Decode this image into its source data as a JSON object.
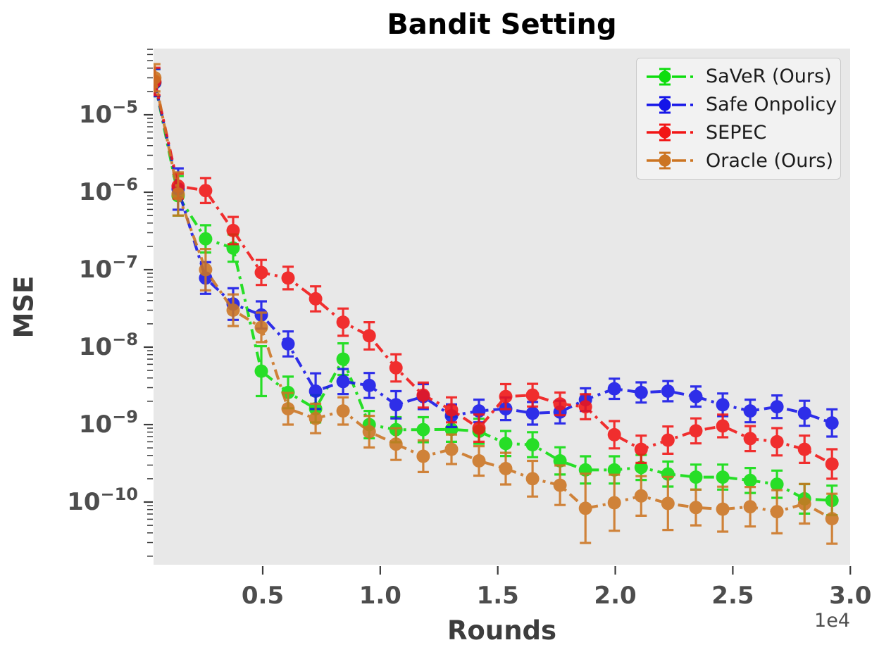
{
  "title": "Bandit Setting",
  "axes": {
    "xlabel": "Rounds",
    "ylabel": "MSE",
    "x_offset_label": "1e4",
    "x_ticks": [
      {
        "value": 5000,
        "label": "0.5"
      },
      {
        "value": 10000,
        "label": "1.0"
      },
      {
        "value": 15000,
        "label": "1.5"
      },
      {
        "value": 20000,
        "label": "2.0"
      },
      {
        "value": 25000,
        "label": "2.5"
      },
      {
        "value": 30000,
        "label": "3.0"
      }
    ],
    "y_ticks": [
      {
        "value": 1e-05,
        "base": "10",
        "exp": "−5"
      },
      {
        "value": 1e-06,
        "base": "10",
        "exp": "−6"
      },
      {
        "value": 1e-07,
        "base": "10",
        "exp": "−7"
      },
      {
        "value": 1e-08,
        "base": "10",
        "exp": "−8"
      },
      {
        "value": 1e-09,
        "base": "10",
        "exp": "−9"
      },
      {
        "value": 1e-10,
        "base": "10",
        "exp": "−10"
      }
    ],
    "xlim": [
      400,
      30000
    ],
    "ylim": [
      1.5e-11,
      7.2e-05
    ],
    "y_scale": "log",
    "grid": false,
    "plot_background": "#e8e8e8"
  },
  "legend": {
    "position": "upper right",
    "items": [
      {
        "label": "SaVeR (Ours)",
        "color": "#0ddd0d"
      },
      {
        "label": "Safe Onpolicy",
        "color": "#1515e8"
      },
      {
        "label": "SEPEC",
        "color": "#f21515"
      },
      {
        "label": "Oracle (Ours)",
        "color": "#cc7522"
      }
    ]
  },
  "chart_data": {
    "type": "line",
    "title": "Bandit Setting",
    "xlabel": "Rounds",
    "ylabel": "MSE",
    "line_style": "dashdot",
    "marker": "circle",
    "error_bars": true,
    "x": [
      410,
      1400,
      2570,
      3740,
      4940,
      6080,
      7250,
      8420,
      9530,
      10670,
      11830,
      13030,
      14200,
      15340,
      16480,
      17650,
      18730,
      19960,
      21100,
      22240,
      23430,
      24570,
      25740,
      26880,
      28050,
      29220
    ],
    "series": [
      {
        "name": "SaVeR (Ours)",
        "color": "#0ddd0d",
        "values": [
          2.6e-05,
          9e-07,
          2.5e-07,
          1.9e-07,
          4.9e-09,
          2.6e-09,
          1.6e-09,
          7e-09,
          1e-09,
          8.6e-10,
          8.6e-10,
          8.7e-10,
          8.2e-10,
          5.7e-10,
          5.5e-10,
          3.4e-10,
          2.6e-10,
          2.6e-10,
          2.8e-10,
          2.3e-10,
          2.1e-10,
          2.1e-10,
          1.9e-10,
          1.7e-10,
          1.1e-10,
          1.05e-10
        ],
        "err_factors": [
          1.5,
          1.8,
          1.5,
          1.5,
          2.1,
          1.6,
          1.5,
          1.6,
          1.5,
          1.45,
          1.45,
          1.45,
          1.45,
          1.45,
          1.45,
          1.5,
          1.5,
          1.5,
          1.45,
          1.45,
          1.45,
          1.45,
          1.45,
          1.5,
          1.55,
          1.55
        ]
      },
      {
        "name": "Safe Onpolicy",
        "color": "#1515e8",
        "values": [
          2.6e-05,
          1.1e-06,
          7.8e-08,
          3.6e-08,
          2.6e-08,
          1.1e-08,
          2.7e-09,
          3.6e-09,
          3.2e-09,
          1.8e-09,
          2.3e-09,
          1.3e-09,
          1.5e-09,
          1.6e-09,
          1.4e-09,
          1.45e-09,
          2.1e-09,
          2.9e-09,
          2.6e-09,
          2.7e-09,
          2.3e-09,
          1.8e-09,
          1.5e-09,
          1.7e-09,
          1.4e-09,
          1.05e-09
        ],
        "err_factors": [
          1.5,
          1.85,
          1.6,
          1.6,
          1.5,
          1.45,
          1.7,
          1.45,
          1.45,
          1.5,
          1.45,
          1.4,
          1.4,
          1.4,
          1.4,
          1.4,
          1.4,
          1.35,
          1.35,
          1.35,
          1.35,
          1.4,
          1.4,
          1.4,
          1.45,
          1.5
        ]
      },
      {
        "name": "SEPEC",
        "color": "#f21515",
        "values": [
          2.7e-05,
          1.2e-06,
          1.05e-06,
          3.2e-07,
          9.2e-08,
          7.8e-08,
          4.2e-08,
          2.1e-08,
          1.4e-08,
          5.4e-09,
          2.4e-09,
          1.55e-09,
          9e-10,
          2.3e-09,
          2.4e-09,
          1.85e-09,
          1.7e-09,
          7.4e-10,
          4.8e-10,
          6.3e-10,
          8.3e-10,
          9.6e-10,
          6.6e-10,
          6e-10,
          4.8e-10,
          3.1e-10
        ],
        "err_factors": [
          1.5,
          1.45,
          1.45,
          1.5,
          1.45,
          1.4,
          1.45,
          1.5,
          1.5,
          1.5,
          1.45,
          1.45,
          1.5,
          1.45,
          1.4,
          1.4,
          1.45,
          1.5,
          1.5,
          1.5,
          1.45,
          1.4,
          1.45,
          1.5,
          1.5,
          1.55
        ]
      },
      {
        "name": "Oracle (Ours)",
        "color": "#cc7522",
        "values": [
          3e-05,
          9.5e-07,
          1e-07,
          3e-08,
          1.8e-08,
          1.6e-09,
          1.2e-09,
          1.5e-09,
          8.1e-10,
          5.6e-10,
          3.9e-10,
          4.8e-10,
          3.4e-10,
          2.7e-10,
          2e-10,
          1.65e-10,
          8.3e-11,
          9.8e-11,
          1.2e-10,
          9.6e-11,
          8.5e-11,
          8.1e-11,
          8.7e-11,
          7.5e-11,
          9.5e-11,
          6.1e-11
        ],
        "err_factors": [
          1.5,
          1.9,
          1.85,
          1.6,
          1.55,
          1.6,
          1.55,
          1.5,
          1.6,
          1.6,
          1.6,
          1.55,
          1.55,
          1.6,
          1.7,
          1.8,
          2.8,
          2.3,
          1.8,
          2.2,
          1.7,
          1.95,
          1.8,
          1.9,
          1.8,
          2.1
        ]
      }
    ]
  }
}
